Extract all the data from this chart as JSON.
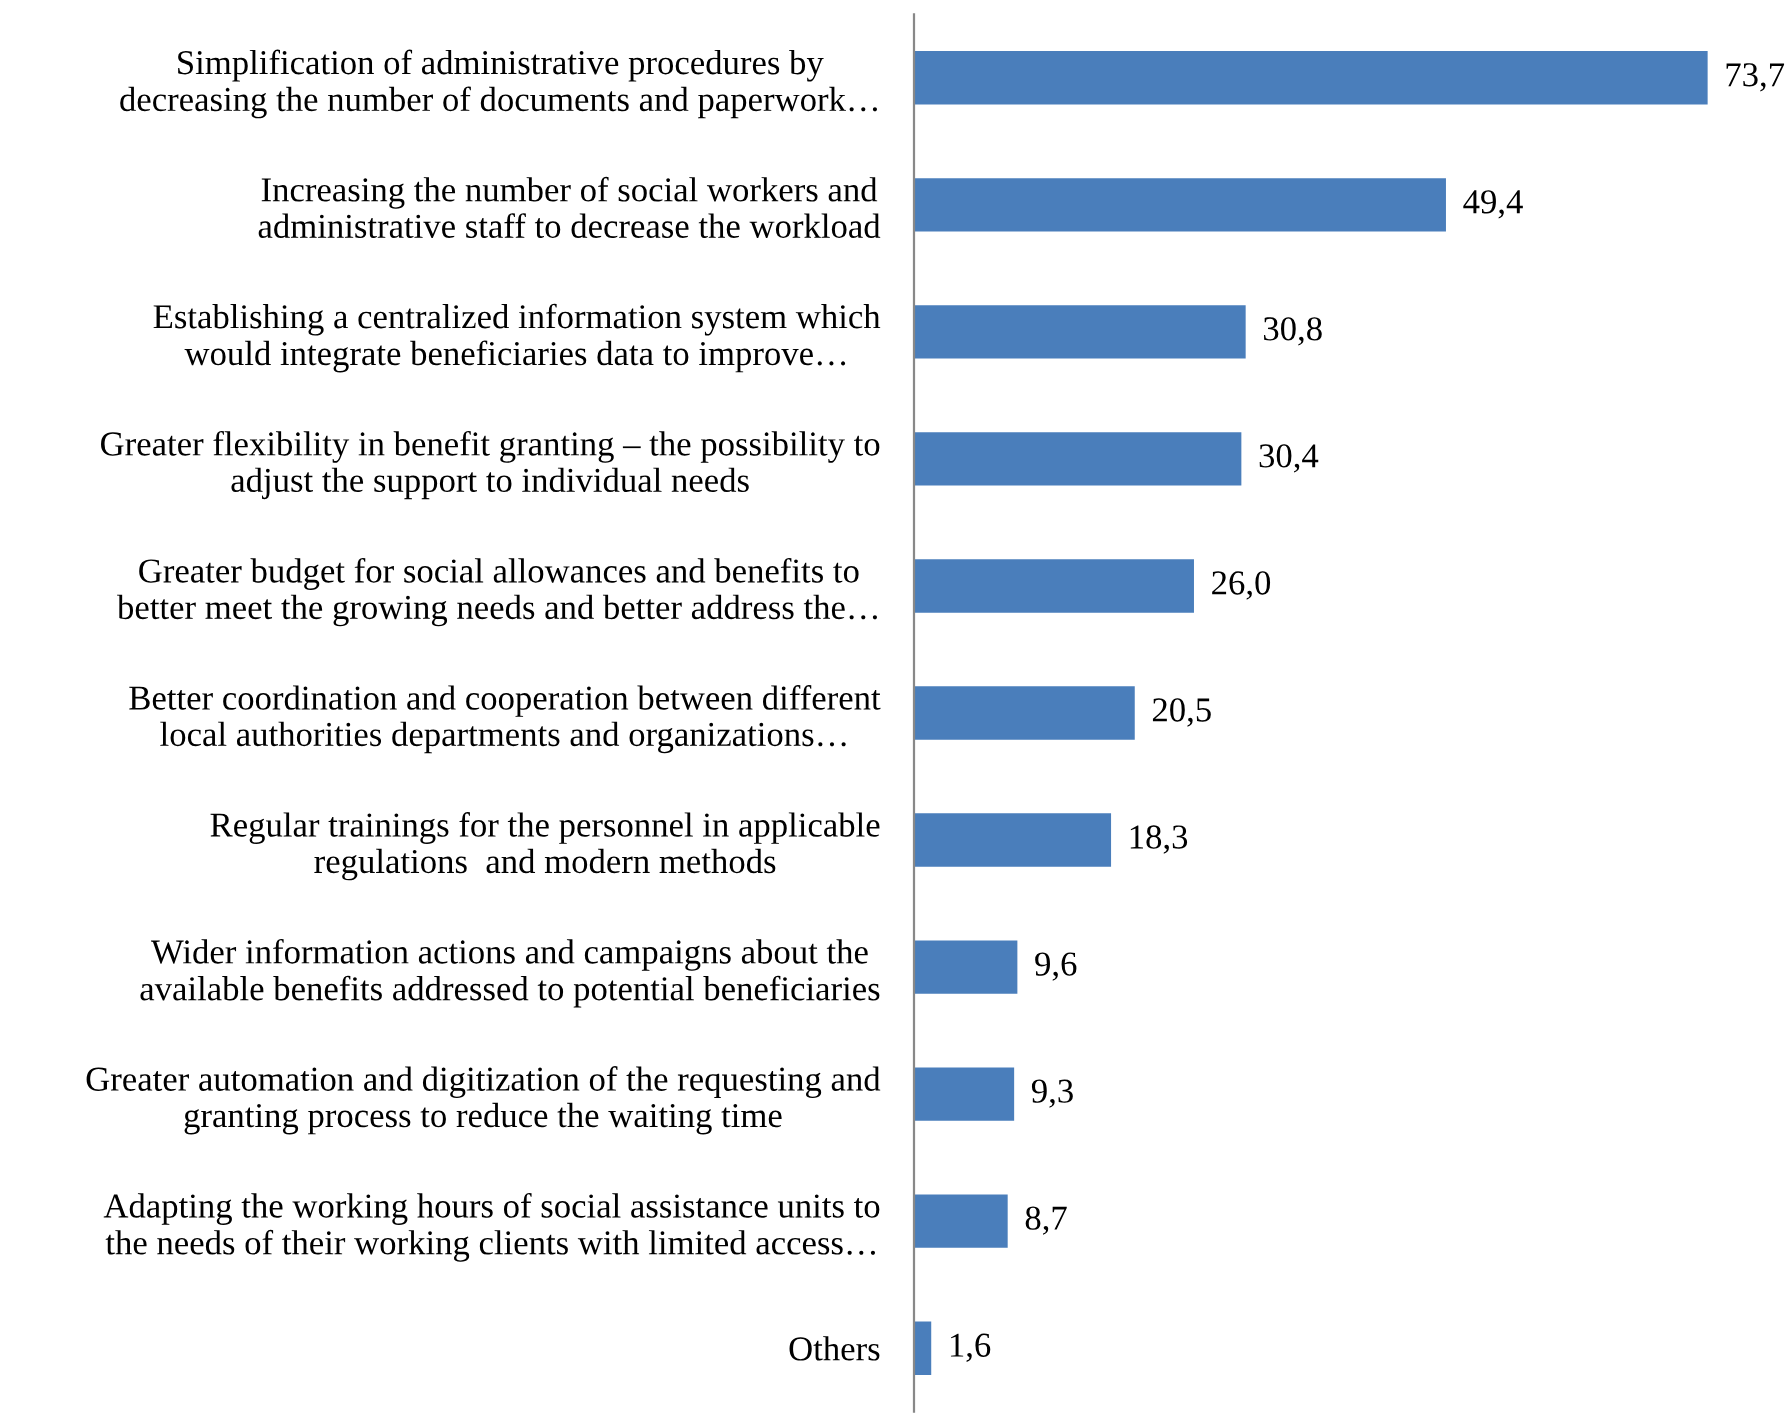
{
  "chart_data": {
    "type": "bar",
    "orientation": "horizontal",
    "categories": [
      "Simplification of administrative procedures by\ndecreasing the number of documents and paperwork…",
      "Increasing the number of social workers and\nadministrative staff to decrease the workload",
      "Establishing a centralized information system which\nwould integrate beneficiaries data to improve…",
      "Greater flexibility in benefit granting – the possibility to\nadjust the support to individual needs",
      "Greater budget for social allowances and benefits to\nbetter meet the growing needs and better address the…",
      "Better coordination and cooperation between different\nlocal authorities departments and organizations…",
      "Regular trainings for the personnel in applicable\nregulations  and modern methods",
      "Wider information actions and campaigns about the\navailable benefits addressed to potential beneficiaries",
      "Greater automation and digitization of the requesting and\ngranting process to reduce the waiting time",
      "Adapting the working hours of social assistance units to\nthe needs of their working clients with limited access…",
      "Others"
    ],
    "values": [
      73.7,
      49.4,
      30.8,
      30.4,
      26.0,
      20.5,
      18.3,
      9.6,
      9.3,
      8.7,
      1.6
    ],
    "value_labels": [
      "73,7",
      "49,4",
      "30,8",
      "30,4",
      "26,0",
      "20,5",
      "18,3",
      "9,6",
      "9,3",
      "8,7",
      "1,6"
    ],
    "color": "#4a7ebb"
  }
}
